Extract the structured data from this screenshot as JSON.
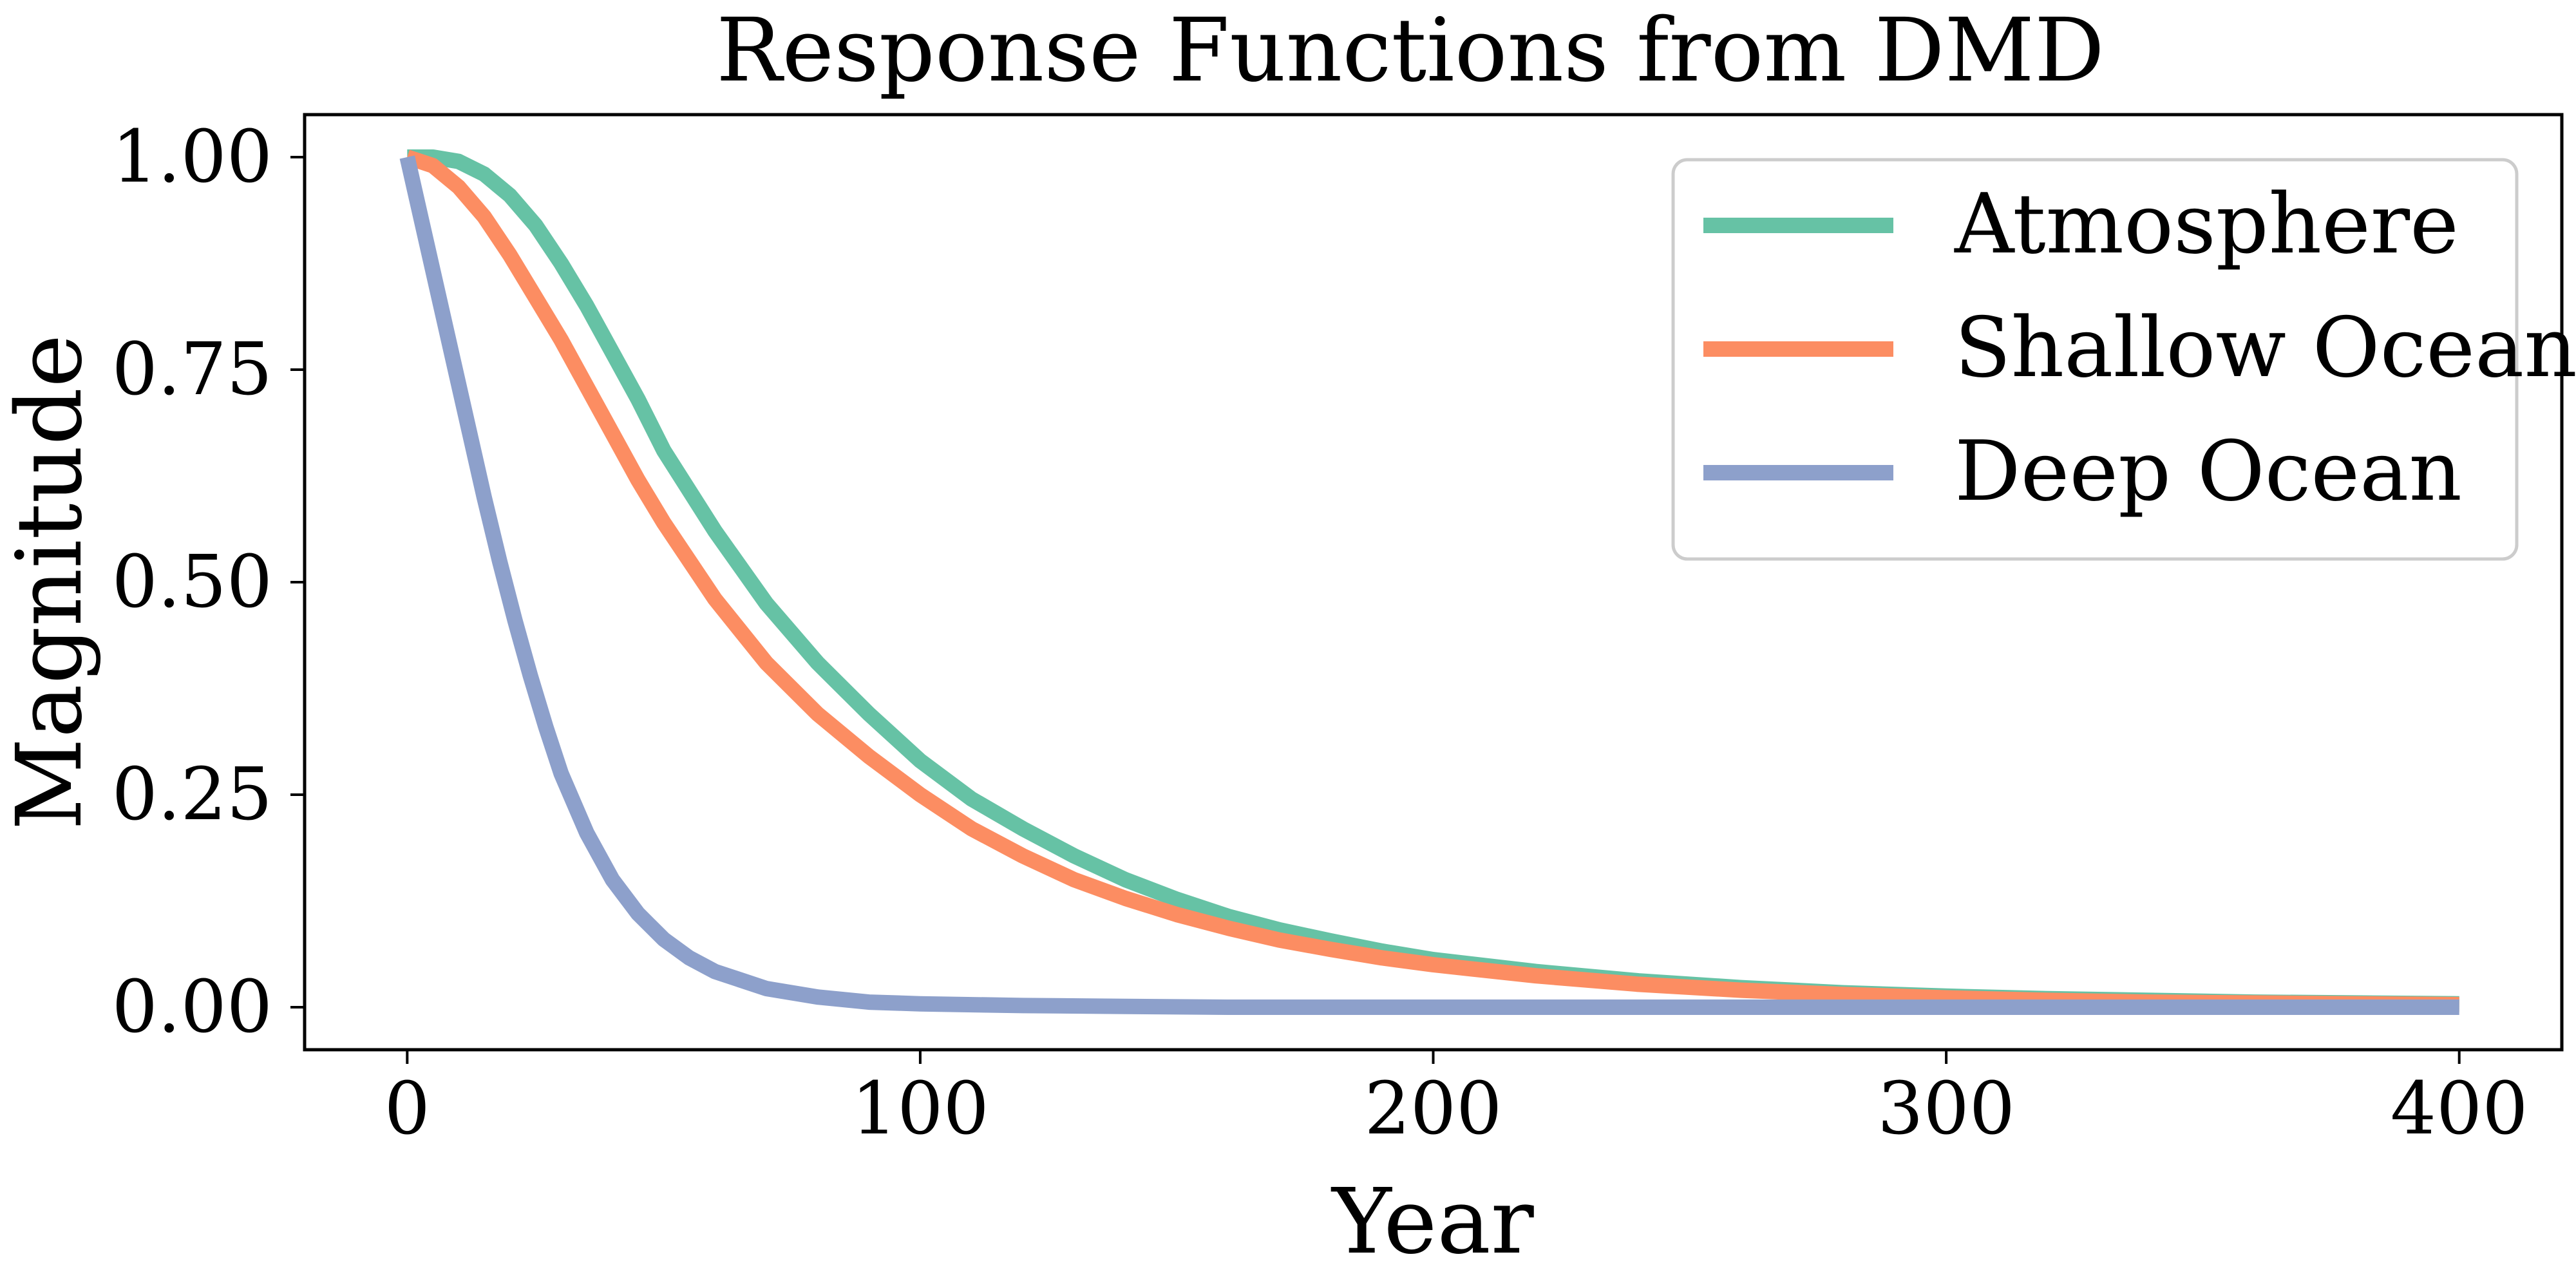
{
  "chart_data": {
    "type": "line",
    "title": "Response Functions from DMD",
    "xlabel": "Year",
    "ylabel": "Magnitude",
    "xlim": [
      -20,
      420
    ],
    "ylim": [
      -0.05,
      1.05
    ],
    "xticks": [
      0,
      100,
      200,
      300,
      400
    ],
    "xtick_labels": [
      "0",
      "100",
      "200",
      "300",
      "400"
    ],
    "yticks": [
      0.0,
      0.25,
      0.5,
      0.75,
      1.0
    ],
    "ytick_labels": [
      "0.00",
      "0.25",
      "0.50",
      "0.75",
      "1.00"
    ],
    "grid": false,
    "legend_position": "top-right",
    "series": [
      {
        "name": "Atmosphere",
        "color": "#66c2a5",
        "x": [
          0,
          5,
          10,
          15,
          20,
          25,
          30,
          35,
          40,
          45,
          50,
          60,
          70,
          80,
          90,
          100,
          110,
          120,
          130,
          140,
          150,
          160,
          170,
          180,
          190,
          200,
          220,
          240,
          260,
          280,
          300,
          320,
          340,
          360,
          380,
          400
        ],
        "y": [
          1.0,
          1.0,
          0.995,
          0.98,
          0.955,
          0.92,
          0.875,
          0.825,
          0.77,
          0.715,
          0.655,
          0.56,
          0.475,
          0.405,
          0.345,
          0.29,
          0.245,
          0.21,
          0.178,
          0.15,
          0.127,
          0.107,
          0.091,
          0.078,
          0.066,
          0.056,
          0.042,
          0.031,
          0.023,
          0.017,
          0.013,
          0.01,
          0.008,
          0.006,
          0.005,
          0.004
        ]
      },
      {
        "name": "Shallow Ocean",
        "color": "#fc8d62",
        "x": [
          0,
          5,
          10,
          15,
          20,
          25,
          30,
          35,
          40,
          45,
          50,
          60,
          70,
          80,
          90,
          100,
          110,
          120,
          130,
          140,
          150,
          160,
          170,
          180,
          190,
          200,
          220,
          240,
          260,
          280,
          300,
          320,
          340,
          360,
          380,
          400
        ],
        "y": [
          1.0,
          0.99,
          0.965,
          0.93,
          0.885,
          0.835,
          0.785,
          0.73,
          0.675,
          0.62,
          0.57,
          0.48,
          0.405,
          0.345,
          0.295,
          0.25,
          0.21,
          0.178,
          0.15,
          0.128,
          0.109,
          0.093,
          0.079,
          0.068,
          0.058,
          0.05,
          0.037,
          0.027,
          0.02,
          0.015,
          0.011,
          0.008,
          0.006,
          0.005,
          0.004,
          0.003
        ]
      },
      {
        "name": "Deep Ocean",
        "color": "#8da0cb",
        "x": [
          0,
          3,
          6,
          9,
          12,
          15,
          18,
          21,
          24,
          27,
          30,
          35,
          40,
          45,
          50,
          55,
          60,
          70,
          80,
          90,
          100,
          120,
          140,
          160,
          200,
          250,
          300,
          350,
          400
        ],
        "y": [
          1.0,
          0.92,
          0.84,
          0.76,
          0.68,
          0.6,
          0.525,
          0.455,
          0.39,
          0.33,
          0.275,
          0.205,
          0.15,
          0.11,
          0.08,
          0.058,
          0.042,
          0.022,
          0.012,
          0.006,
          0.004,
          0.002,
          0.001,
          0.0,
          0.0,
          0.0,
          0.0,
          0.0,
          0.0
        ]
      }
    ]
  }
}
